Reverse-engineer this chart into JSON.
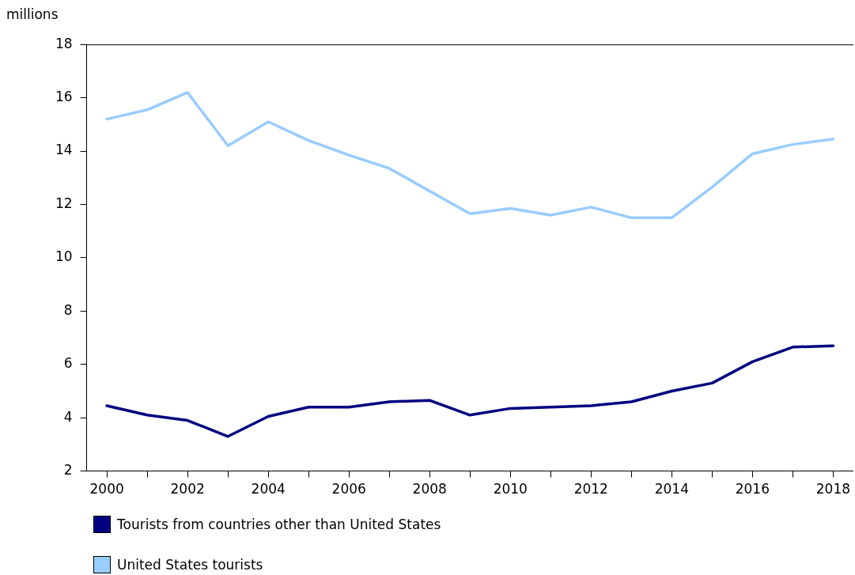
{
  "chart_data": {
    "type": "line",
    "ylabel": "millions",
    "categories": [
      "2000",
      null,
      "2002",
      null,
      "2004",
      null,
      "2006",
      null,
      "2008",
      null,
      "2010",
      null,
      "2012",
      null,
      "2014",
      null,
      "2016",
      null,
      "2018"
    ],
    "series": [
      {
        "name": "Tourists from countries other than United States",
        "color": "#000080",
        "values": [
          4.45,
          4.1,
          3.9,
          3.3,
          4.05,
          4.4,
          4.4,
          4.6,
          4.65,
          4.1,
          4.35,
          4.4,
          4.45,
          4.6,
          5.0,
          5.3,
          6.1,
          6.65,
          6.7
        ]
      },
      {
        "name": "United States tourists",
        "color": "#99ccff",
        "values": [
          15.2,
          15.55,
          16.2,
          14.2,
          15.1,
          14.4,
          13.85,
          13.35,
          12.5,
          11.65,
          11.85,
          11.6,
          11.9,
          11.5,
          11.5,
          12.65,
          13.9,
          14.25,
          14.45
        ]
      }
    ],
    "ylim": [
      2,
      18
    ],
    "yticks": [
      2,
      4,
      6,
      8,
      10,
      12,
      14,
      16,
      18
    ],
    "grid": false,
    "legend": "bottom",
    "marker": "none",
    "line_style": "solid"
  }
}
